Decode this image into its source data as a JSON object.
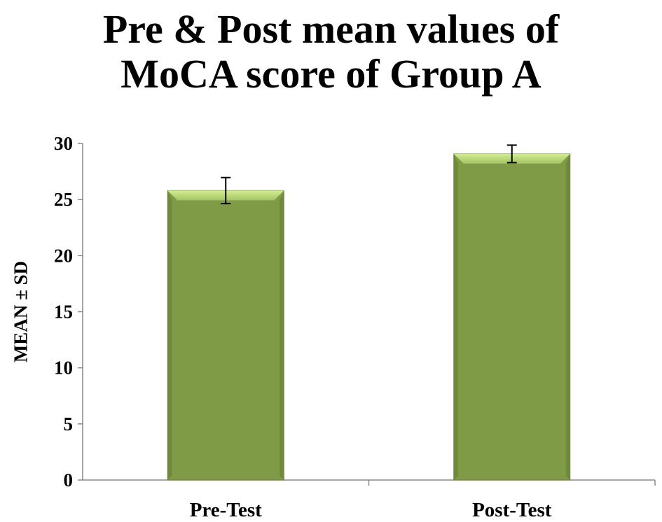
{
  "chart_data": {
    "type": "bar",
    "title_lines": [
      "Pre & Post mean values of",
      "MoCA score of Group A"
    ],
    "categories": [
      "Pre-Test",
      "Post-Test"
    ],
    "values": [
      25.8,
      29.07
    ],
    "errors": [
      1.16,
      0.78
    ],
    "xlabel": "",
    "ylabel": "MEAN ± SD",
    "ylim": [
      0,
      30
    ],
    "yticks": [
      0,
      5,
      10,
      15,
      20,
      25,
      30
    ],
    "grid": false,
    "bar_color": "#7F9B45",
    "bar_highlight": "#C9E38A"
  }
}
